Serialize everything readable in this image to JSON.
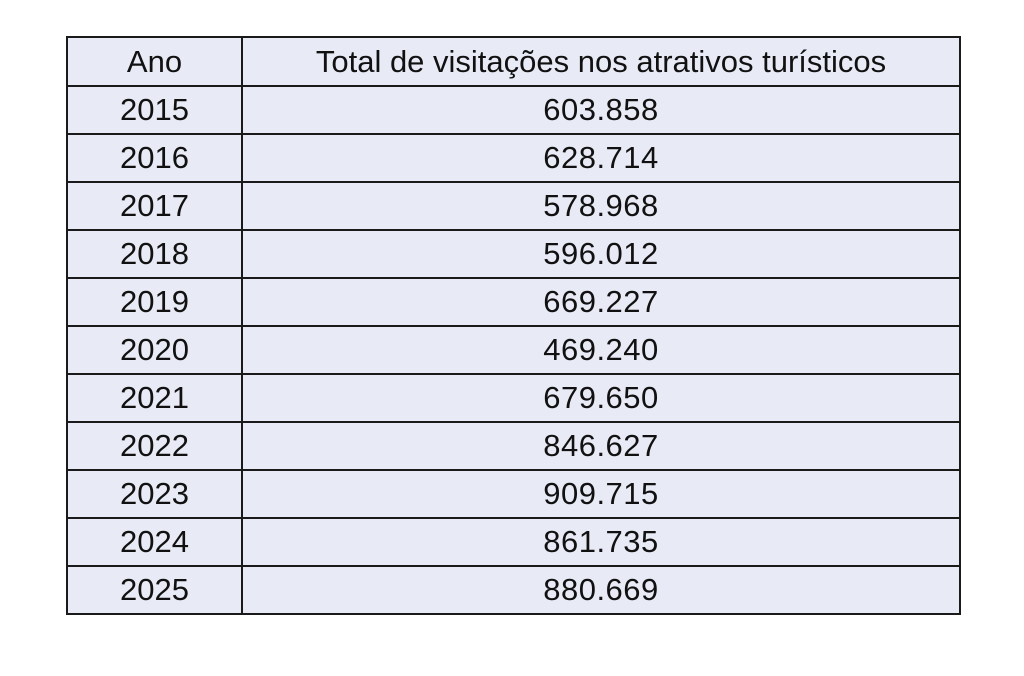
{
  "table": {
    "headers": {
      "year": "Ano",
      "total": "Total de visitações nos atrativos turísticos"
    },
    "rows": [
      {
        "year": "2015",
        "total": "603.858"
      },
      {
        "year": "2016",
        "total": "628.714"
      },
      {
        "year": "2017",
        "total": "578.968"
      },
      {
        "year": "2018",
        "total": "596.012"
      },
      {
        "year": "2019",
        "total": "669.227"
      },
      {
        "year": "2020",
        "total": "469.240"
      },
      {
        "year": "2021",
        "total": "679.650"
      },
      {
        "year": "2022",
        "total": "846.627"
      },
      {
        "year": "2023",
        "total": "909.715"
      },
      {
        "year": "2024",
        "total": "861.735"
      },
      {
        "year": "2025",
        "total": "880.669"
      }
    ]
  },
  "colors": {
    "cell_background": "#e8eaf6",
    "border": "#1a1a1a",
    "text": "#111111"
  }
}
